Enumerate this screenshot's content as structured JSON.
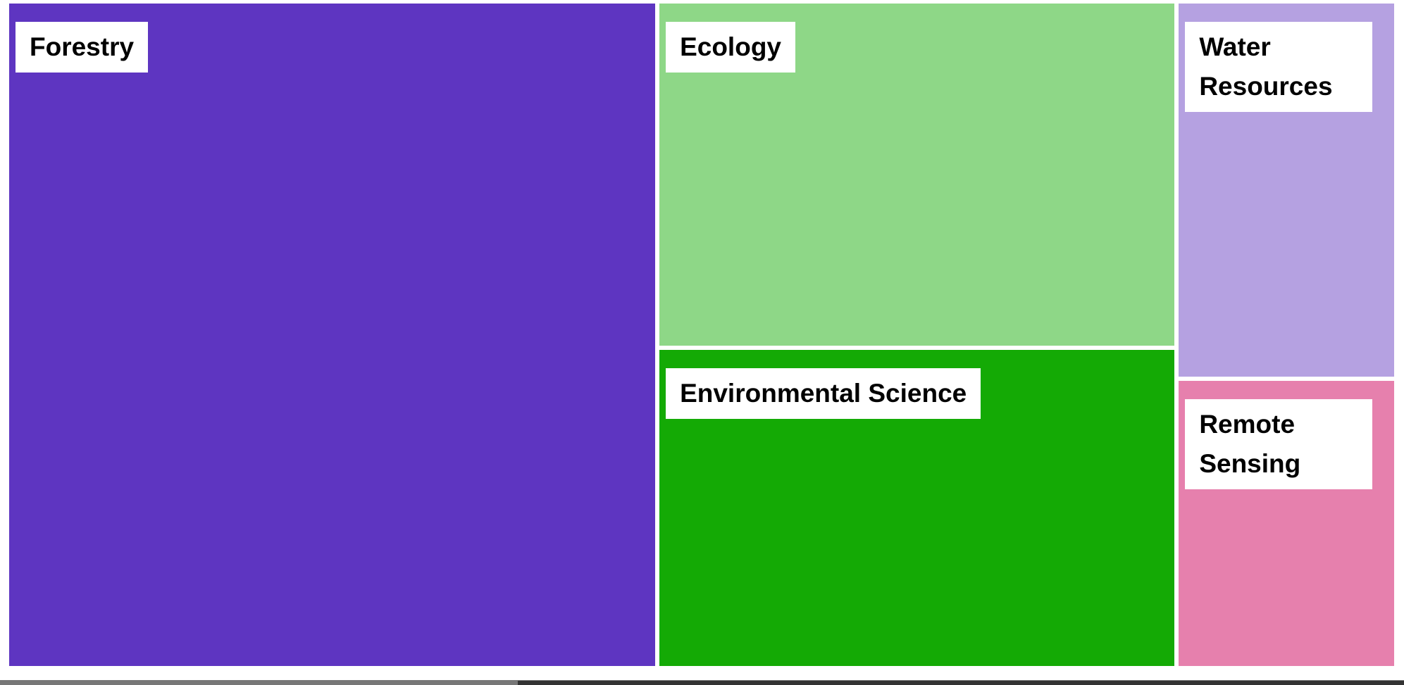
{
  "chart_data": {
    "type": "treemap",
    "categories": [
      "Forestry",
      "Ecology",
      "Environmental Science",
      "Water Resources",
      "Remote Sensing"
    ],
    "values": [
      46.8,
      19.5,
      18.0,
      8.9,
      6.8
    ],
    "colors": [
      "#5e35c1",
      "#8ed787",
      "#14aa05",
      "#b5a1e1",
      "#e680ad"
    ]
  }
}
